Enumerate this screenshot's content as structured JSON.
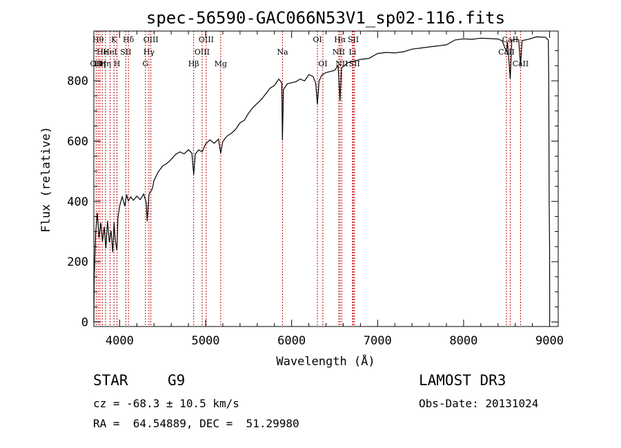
{
  "chart_data": {
    "type": "line",
    "title": "spec-56590-GAC066N53V1_sp02-116.fits",
    "xlabel": "Wavelength (Å)",
    "ylabel": "Flux (relative)",
    "xlim": [
      3700,
      9100
    ],
    "ylim": [
      -15,
      965
    ],
    "xticks": [
      4000,
      5000,
      6000,
      7000,
      8000,
      9000
    ],
    "yticks": [
      0,
      200,
      400,
      600,
      800
    ],
    "line_color": "#000000",
    "marker_color": "#c00000",
    "series": [
      {
        "name": "flux",
        "points": [
          [
            3700,
            0
          ],
          [
            3705,
            150
          ],
          [
            3720,
            290
          ],
          [
            3740,
            360
          ],
          [
            3760,
            280
          ],
          [
            3780,
            330
          ],
          [
            3800,
            270
          ],
          [
            3820,
            320
          ],
          [
            3840,
            250
          ],
          [
            3860,
            330
          ],
          [
            3880,
            260
          ],
          [
            3900,
            300
          ],
          [
            3920,
            230
          ],
          [
            3935,
            330
          ],
          [
            3950,
            270
          ],
          [
            3968,
            240
          ],
          [
            3980,
            350
          ],
          [
            4000,
            390
          ],
          [
            4030,
            410
          ],
          [
            4060,
            380
          ],
          [
            4080,
            420
          ],
          [
            4101,
            400
          ],
          [
            4130,
            415
          ],
          [
            4160,
            405
          ],
          [
            4200,
            420
          ],
          [
            4240,
            410
          ],
          [
            4280,
            430
          ],
          [
            4310,
            390
          ],
          [
            4320,
            330
          ],
          [
            4340,
            420
          ],
          [
            4380,
            440
          ],
          [
            4400,
            470
          ],
          [
            4450,
            500
          ],
          [
            4500,
            520
          ],
          [
            4550,
            530
          ],
          [
            4600,
            545
          ],
          [
            4650,
            550
          ],
          [
            4700,
            560
          ],
          [
            4750,
            555
          ],
          [
            4800,
            570
          ],
          [
            4840,
            560
          ],
          [
            4861,
            490
          ],
          [
            4880,
            560
          ],
          [
            4920,
            575
          ],
          [
            4960,
            570
          ],
          [
            5000,
            585
          ],
          [
            5050,
            600
          ],
          [
            5100,
            590
          ],
          [
            5150,
            605
          ],
          [
            5175,
            560
          ],
          [
            5200,
            600
          ],
          [
            5250,
            620
          ],
          [
            5300,
            630
          ],
          [
            5350,
            645
          ],
          [
            5400,
            655
          ],
          [
            5450,
            665
          ],
          [
            5500,
            690
          ],
          [
            5550,
            710
          ],
          [
            5600,
            725
          ],
          [
            5650,
            740
          ],
          [
            5700,
            760
          ],
          [
            5750,
            780
          ],
          [
            5800,
            790
          ],
          [
            5850,
            800
          ],
          [
            5885,
            790
          ],
          [
            5893,
            600
          ],
          [
            5905,
            770
          ],
          [
            5950,
            790
          ],
          [
            6000,
            795
          ],
          [
            6050,
            800
          ],
          [
            6100,
            810
          ],
          [
            6150,
            805
          ],
          [
            6200,
            815
          ],
          [
            6250,
            810
          ],
          [
            6280,
            790
          ],
          [
            6300,
            720
          ],
          [
            6320,
            800
          ],
          [
            6350,
            820
          ],
          [
            6400,
            830
          ],
          [
            6450,
            835
          ],
          [
            6500,
            840
          ],
          [
            6540,
            845
          ],
          [
            6563,
            730
          ],
          [
            6580,
            840
          ],
          [
            6620,
            850
          ],
          [
            6650,
            860
          ],
          [
            6700,
            865
          ],
          [
            6750,
            870
          ],
          [
            6800,
            875
          ],
          [
            6900,
            880
          ],
          [
            7000,
            885
          ],
          [
            7100,
            890
          ],
          [
            7200,
            890
          ],
          [
            7300,
            895
          ],
          [
            7400,
            905
          ],
          [
            7500,
            910
          ],
          [
            7600,
            915
          ],
          [
            7700,
            920
          ],
          [
            7800,
            925
          ],
          [
            7900,
            930
          ],
          [
            8000,
            935
          ],
          [
            8100,
            935
          ],
          [
            8200,
            940
          ],
          [
            8300,
            940
          ],
          [
            8400,
            940
          ],
          [
            8450,
            935
          ],
          [
            8498,
            900
          ],
          [
            8510,
            935
          ],
          [
            8542,
            800
          ],
          [
            8560,
            930
          ],
          [
            8600,
            935
          ],
          [
            8640,
            935
          ],
          [
            8662,
            850
          ],
          [
            8680,
            935
          ],
          [
            8750,
            940
          ],
          [
            8850,
            950
          ],
          [
            8950,
            950
          ],
          [
            8985,
            930
          ],
          [
            8990,
            790
          ],
          [
            8995,
            400
          ],
          [
            9000,
            250
          ],
          [
            9001,
            0
          ]
        ]
      }
    ],
    "line_markers": [
      {
        "wl": 3727,
        "label": "OII",
        "row": 3
      },
      {
        "wl": 3750,
        "label": "Hθ",
        "row": 1
      },
      {
        "wl": 3771,
        "label": "Hη",
        "row": 3
      },
      {
        "wl": 3798,
        "label": "He",
        "row": 2
      },
      {
        "wl": 3835,
        "label": "Hη",
        "row": 3
      },
      {
        "wl": 3889,
        "label": "HeI",
        "row": 2
      },
      {
        "wl": 3934,
        "label": "K",
        "row": 1
      },
      {
        "wl": 3969,
        "label": "H",
        "row": 3
      },
      {
        "wl": 4072,
        "label": "SII",
        "row": 2
      },
      {
        "wl": 4102,
        "label": "Hδ",
        "row": 1
      },
      {
        "wl": 4300,
        "label": "G",
        "row": 3
      },
      {
        "wl": 4341,
        "label": "Hγ",
        "row": 2
      },
      {
        "wl": 4363,
        "label": "OIII",
        "row": 1
      },
      {
        "wl": 4861,
        "label": "Hβ",
        "row": 3
      },
      {
        "wl": 4959,
        "label": "OIII",
        "row": 2
      },
      {
        "wl": 5007,
        "label": "OIII",
        "row": 1
      },
      {
        "wl": 5175,
        "label": "Mg",
        "row": 3
      },
      {
        "wl": 5894,
        "label": "Na",
        "row": 2
      },
      {
        "wl": 6300,
        "label": "OI",
        "row": 1
      },
      {
        "wl": 6363,
        "label": "OI",
        "row": 3
      },
      {
        "wl": 6548,
        "label": "NII",
        "row": 2
      },
      {
        "wl": 6563,
        "label": "Hα",
        "row": 1
      },
      {
        "wl": 6583,
        "label": "NII",
        "row": 3
      },
      {
        "wl": 6708,
        "label": "Li",
        "row": 2
      },
      {
        "wl": 6717,
        "label": "SII",
        "row": 1
      },
      {
        "wl": 6731,
        "label": "SII",
        "row": 3
      },
      {
        "wl": 8498,
        "label": "CaII",
        "row": 2
      },
      {
        "wl": 8542,
        "label": "CaII",
        "row": 1
      },
      {
        "wl": 8662,
        "label": "CaII",
        "row": 3
      }
    ]
  },
  "info": {
    "class": "STAR",
    "subclass": "G9",
    "survey": "LAMOST DR3",
    "cz": "cz = -68.3 ± 10.5 km/s",
    "obs_date": "Obs-Date: 20131024",
    "radec": "RA =  64.54889, DEC =  51.29980"
  }
}
